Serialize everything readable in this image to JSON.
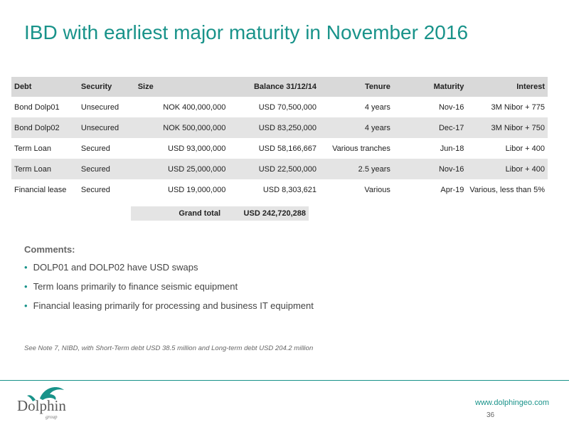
{
  "title": "IBD with earliest major maturity in November 2016",
  "table": {
    "headers": [
      "Debt",
      "Security",
      "Size",
      "Balance 31/12/14",
      "Tenure",
      "Maturity",
      "Interest"
    ],
    "rows": [
      [
        "Bond Dolp01",
        "Unsecured",
        "NOK 400,000,000",
        "USD 70,500,000",
        "4 years",
        "Nov-16",
        "3M Nibor + 775"
      ],
      [
        "Bond Dolp02",
        "Unsecured",
        "NOK 500,000,000",
        "USD 83,250,000",
        "4 years",
        "Dec-17",
        "3M Nibor + 750"
      ],
      [
        "Term Loan",
        "Secured",
        "USD 93,000,000",
        "USD 58,166,667",
        "Various tranches",
        "Jun-18",
        "Libor + 400"
      ],
      [
        "Term Loan",
        "Secured",
        "USD 25,000,000",
        "USD 22,500,000",
        "2.5 years",
        "Nov-16",
        "Libor + 400"
      ],
      [
        "Financial lease",
        "Secured",
        "USD 19,000,000",
        "USD 8,303,621",
        "Various",
        "Apr-19",
        "Various, less than 5%"
      ]
    ],
    "grand_total_label": "Grand total",
    "grand_total_value": "USD 242,720,288"
  },
  "comments": {
    "title": "Comments:",
    "bullets": [
      "DOLP01 and DOLP02 have USD swaps",
      "Term loans primarily to finance seismic equipment",
      "Financial leasing primarily for processing and business IT equipment"
    ]
  },
  "note": "See Note 7, NIBD, with Short-Term debt USD 38.5 million and Long-term debt USD 204.2 million",
  "footer": {
    "logo_text": "Dolphin",
    "logo_sub": "group",
    "website": "www.dolphingeo.com",
    "page_number": "36"
  },
  "colors": {
    "accent": "#19938a",
    "header_bg": "#d9d9d9",
    "row_stripe": "#e4e4e4"
  }
}
